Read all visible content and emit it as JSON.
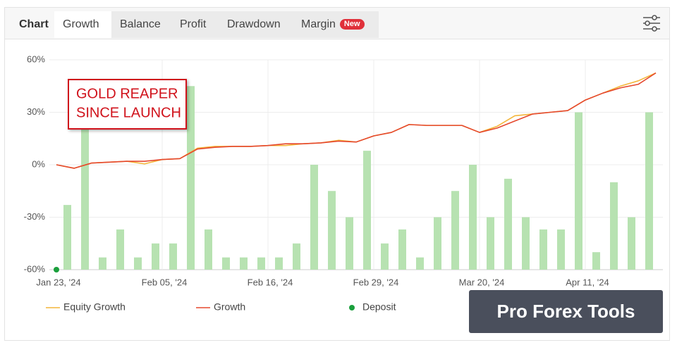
{
  "tabs": [
    "Chart",
    "Growth",
    "Balance",
    "Profit",
    "Drawdown",
    "Margin"
  ],
  "tab_badge": "New",
  "watermark": "Pro Forex Tools",
  "chart_data": {
    "type": "line",
    "annotation": [
      "GOLD REAPER",
      "SINCE LAUNCH"
    ],
    "categories": [
      "Jan 23, '24",
      null,
      null,
      null,
      null,
      null,
      "Feb 05, '24",
      null,
      null,
      null,
      null,
      null,
      "Feb 16, '24",
      null,
      null,
      null,
      null,
      null,
      "Feb 29, '24",
      null,
      null,
      null,
      null,
      null,
      "Mar 20, '24",
      null,
      null,
      null,
      null,
      null,
      "Apr 11, '24",
      null,
      null,
      null,
      null
    ],
    "ylim": [
      -60,
      60
    ],
    "yticks": [
      {
        "value": -60,
        "label": "-60%"
      },
      {
        "value": -30,
        "label": "-30%"
      },
      {
        "value": 0,
        "label": "0%"
      },
      {
        "value": 30,
        "label": "30%"
      },
      {
        "value": 60,
        "label": "60%"
      }
    ],
    "grid": true,
    "series": [
      {
        "type": "bar",
        "color": "#b7e2b1",
        "values": [
          null,
          -23,
          22,
          -53,
          -37,
          -53,
          -45,
          -45,
          45,
          -37,
          -53,
          -53,
          -53,
          -53,
          -45,
          0,
          -15,
          -30,
          8,
          -45,
          -37,
          -53,
          -30,
          -15,
          0,
          -30,
          -8,
          -30,
          -37,
          -37,
          30,
          -50,
          -10,
          -30,
          30
        ]
      },
      {
        "type": "line",
        "name": "Equity Growth",
        "color": "#f4b63a",
        "values": [
          0,
          -2,
          1,
          1.5,
          2,
          0.5,
          3,
          3.5,
          9.5,
          10.5,
          10.5,
          10.5,
          11,
          11,
          12,
          12.5,
          14,
          13,
          16.5,
          18.5,
          23,
          22.5,
          22.5,
          22.5,
          18.5,
          22,
          28,
          29,
          30,
          31,
          37,
          41,
          45,
          48,
          52.5
        ]
      },
      {
        "type": "line",
        "name": "Growth",
        "color": "#e5482e",
        "values": [
          0,
          -2,
          1,
          1.5,
          2,
          2,
          3,
          3.5,
          9,
          10,
          10.5,
          10.5,
          11,
          12,
          12,
          12.5,
          13.5,
          13,
          16.5,
          18.5,
          23,
          22.5,
          22.5,
          22.5,
          18.5,
          21,
          25,
          29,
          30,
          31,
          37,
          41,
          44,
          46,
          52.5
        ]
      },
      {
        "type": "scatter",
        "name": "Deposit",
        "color": "#1a9f3c",
        "values": [
          -60,
          null,
          null,
          null,
          null,
          null,
          null,
          null,
          null,
          null,
          null,
          null,
          null,
          null,
          null,
          null,
          null,
          null,
          null,
          null,
          null,
          null,
          null,
          null,
          null,
          null,
          null,
          null,
          null,
          null,
          null,
          null,
          null,
          null,
          null
        ]
      }
    ]
  }
}
